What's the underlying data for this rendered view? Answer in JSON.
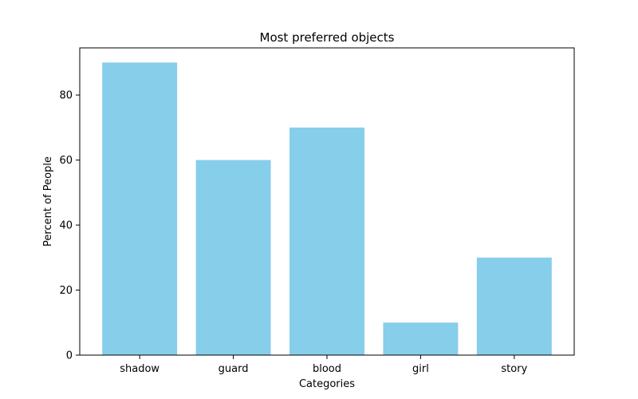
{
  "chart_data": {
    "type": "bar",
    "title": "Most preferred objects",
    "xlabel": "Categories",
    "ylabel": "Percent of People",
    "categories": [
      "shadow",
      "guard",
      "blood",
      "girl",
      "story"
    ],
    "values": [
      90,
      60,
      70,
      10,
      30
    ],
    "ylim": [
      0,
      94.5
    ],
    "yticks": [
      0,
      20,
      40,
      60,
      80
    ],
    "bar_color": "#87CEEB",
    "grid": false,
    "legend": "none"
  }
}
